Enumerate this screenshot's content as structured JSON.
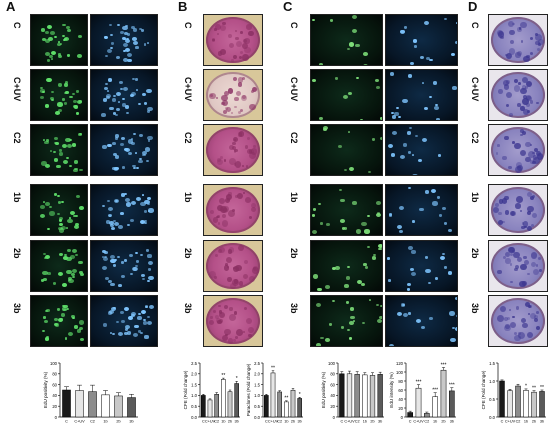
{
  "panels": [
    {
      "letter": "A",
      "rows": [
        "C",
        "C+UV",
        "C2",
        "1b",
        "2b",
        "3b"
      ]
    },
    {
      "letter": "B",
      "rows": [
        "C",
        "C+UV",
        "C2",
        "1b",
        "2b",
        "3b"
      ]
    },
    {
      "letter": "C",
      "rows": [
        "C",
        "C+UV",
        "C2",
        "1b",
        "2b",
        "3b"
      ]
    },
    {
      "letter": "D",
      "rows": [
        "C",
        "C+UV",
        "C2",
        "1b",
        "2b",
        "3b"
      ]
    }
  ],
  "chart_data": [
    {
      "type": "bar",
      "categories": [
        "C",
        "C+UV",
        "C2",
        "1b",
        "2b",
        "3b"
      ],
      "values": [
        50,
        49,
        47,
        41,
        39,
        36
      ],
      "errors": [
        6,
        10,
        12,
        8,
        6,
        6
      ],
      "ylabel": "EdU positivity (%)",
      "ylim": [
        0,
        100
      ],
      "yticks": [
        "0",
        "20",
        "40",
        "60",
        "80",
        "100"
      ],
      "significance": [
        "",
        "",
        "",
        "",
        "",
        ""
      ],
      "colors": [
        "#1a1a1a",
        "#e6e6e6",
        "#8c8c8c",
        "#ffffff",
        "#c8c8c8",
        "#5a5a5a"
      ]
    },
    {
      "type": "bar",
      "categories": [
        "C",
        "C+UV",
        "C2",
        "1b",
        "2b",
        "3b"
      ],
      "values": [
        1.0,
        0.79,
        1.05,
        1.74,
        1.17,
        1.55
      ],
      "errors": [
        0.05,
        0.05,
        0.08,
        0.06,
        0.08,
        0.1
      ],
      "ylabel": "CFE (Fold change)",
      "ylim": [
        0,
        2.5
      ],
      "yticks": [
        "0.0",
        "0.5",
        "1.0",
        "1.5",
        "2.0",
        "2.5"
      ],
      "significance": [
        "",
        "",
        "",
        "**",
        "",
        "*"
      ],
      "colors": [
        "#1a1a1a",
        "#e6e6e6",
        "#8c8c8c",
        "#ffffff",
        "#c8c8c8",
        "#5a5a5a"
      ]
    },
    {
      "type": "bar",
      "categories": [
        "C",
        "C+UV",
        "C2",
        "1b",
        "2b",
        "3b"
      ],
      "values": [
        1.0,
        2.04,
        1.16,
        0.7,
        1.24,
        0.86
      ],
      "errors": [
        0.05,
        0.1,
        0.06,
        0.05,
        0.08,
        0.05
      ],
      "ylabel": "Paraclones (Fold change)",
      "ylim": [
        0,
        2.5
      ],
      "yticks": [
        "0.0",
        "0.5",
        "1.0",
        "1.5",
        "2.0",
        "2.5"
      ],
      "significance": [
        "",
        "**",
        "",
        "**",
        "",
        "*"
      ],
      "colors": [
        "#1a1a1a",
        "#e6e6e6",
        "#8c8c8c",
        "#ffffff",
        "#c8c8c8",
        "#5a5a5a"
      ]
    },
    {
      "type": "bar",
      "categories": [
        "C",
        "C+UV",
        "C2",
        "1b",
        "2b",
        "3b"
      ],
      "values": [
        80,
        80,
        79,
        78,
        77,
        79
      ],
      "errors": [
        4,
        5,
        5,
        4,
        5,
        4
      ],
      "ylabel": "EdU positivity (%)",
      "ylim": [
        0,
        100
      ],
      "yticks": [
        "0",
        "20",
        "40",
        "60",
        "80",
        "100"
      ],
      "significance": [
        "",
        "",
        "",
        "",
        "",
        ""
      ],
      "colors": [
        "#1a1a1a",
        "#e6e6e6",
        "#8c8c8c",
        "#ffffff",
        "#c8c8c8",
        "#5a5a5a"
      ]
    },
    {
      "type": "bar",
      "categories": [
        "C",
        "C+UV",
        "C2",
        "1b",
        "2b",
        "3b"
      ],
      "values": [
        10,
        64,
        8,
        45,
        104,
        58
      ],
      "errors": [
        3,
        8,
        3,
        9,
        6,
        7
      ],
      "ylabel": "EdU intensity (%)",
      "ylim": [
        0,
        120
      ],
      "yticks": [
        "0",
        "20",
        "40",
        "60",
        "80",
        "100",
        "120"
      ],
      "significance": [
        "",
        "***",
        "",
        "***",
        "***",
        "***"
      ],
      "colors": [
        "#1a1a1a",
        "#e6e6e6",
        "#8c8c8c",
        "#ffffff",
        "#c8c8c8",
        "#5a5a5a"
      ]
    },
    {
      "type": "bar",
      "categories": [
        "C",
        "C+UV",
        "C2",
        "1b",
        "2b",
        "3b"
      ],
      "values": [
        1.0,
        0.73,
        0.86,
        0.74,
        0.69,
        0.71
      ],
      "errors": [
        0.03,
        0.04,
        0.05,
        0.04,
        0.04,
        0.04
      ],
      "ylabel": "CFE (Fold change)",
      "ylim": [
        0,
        1.5
      ],
      "yticks": [
        "0.0",
        "0.5",
        "1.0",
        "1.5"
      ],
      "significance": [
        "",
        "",
        "",
        "*",
        "**",
        "**"
      ],
      "colors": [
        "#1a1a1a",
        "#e6e6e6",
        "#8c8c8c",
        "#ffffff",
        "#c8c8c8",
        "#5a5a5a"
      ]
    }
  ]
}
